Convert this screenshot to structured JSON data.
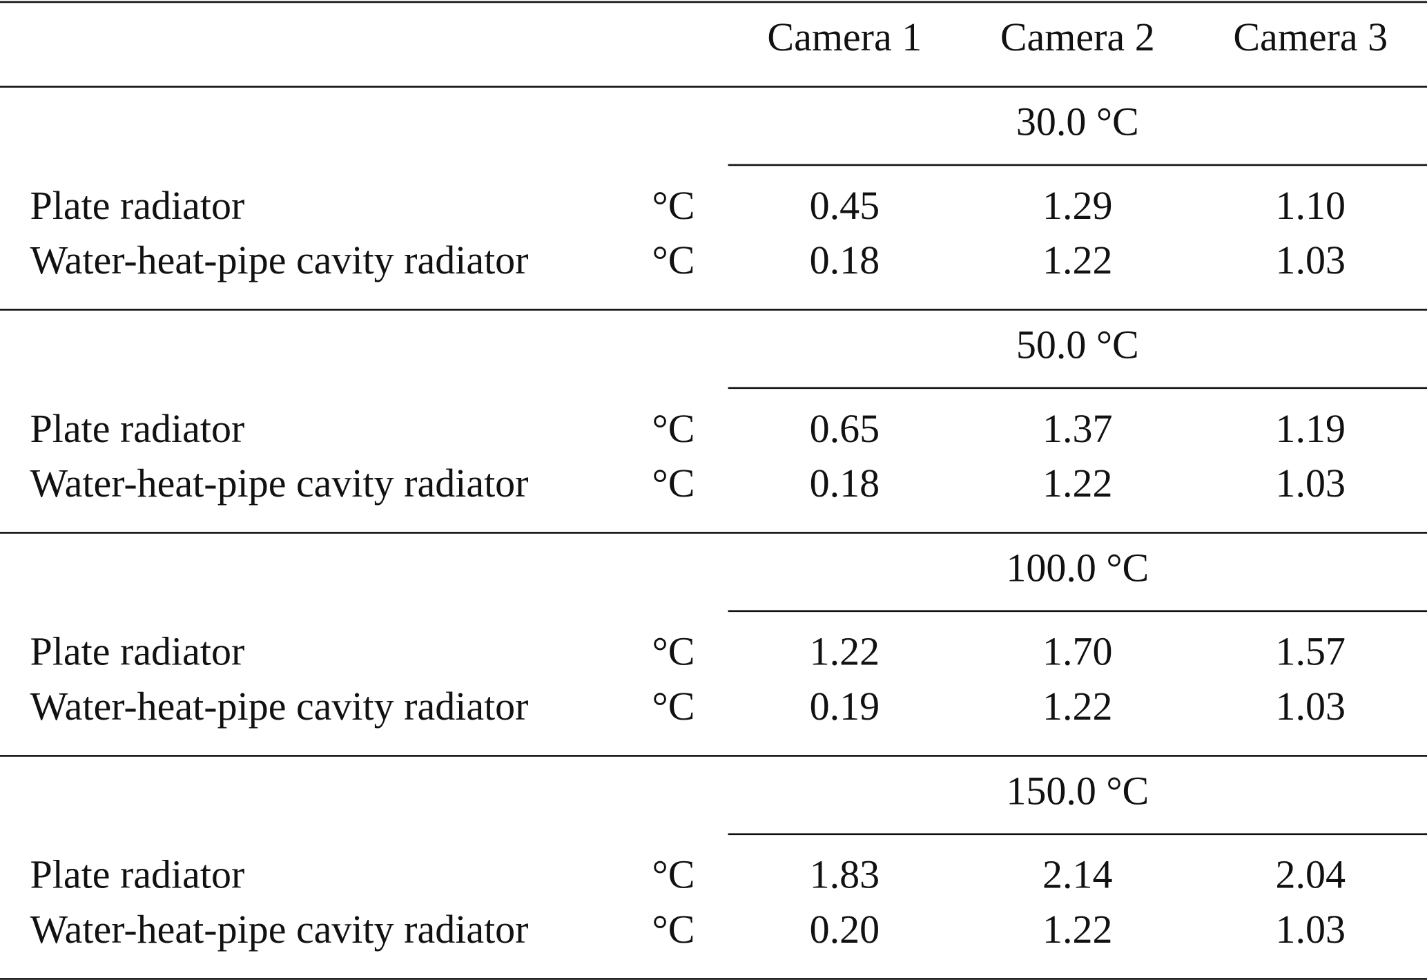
{
  "table": {
    "header": [
      "Camera 1",
      "Camera 2",
      "Camera 3"
    ],
    "groups": [
      {
        "title": "30.0 °C",
        "rows": [
          {
            "label": "Plate radiator",
            "unit": "°C",
            "values": [
              "0.45",
              "1.29",
              "1.10"
            ]
          },
          {
            "label": "Water-heat-pipe cavity radiator",
            "unit": "°C",
            "values": [
              "0.18",
              "1.22",
              "1.03"
            ]
          }
        ]
      },
      {
        "title": "50.0 °C",
        "rows": [
          {
            "label": "Plate radiator",
            "unit": "°C",
            "values": [
              "0.65",
              "1.37",
              "1.19"
            ]
          },
          {
            "label": "Water-heat-pipe cavity radiator",
            "unit": "°C",
            "values": [
              "0.18",
              "1.22",
              "1.03"
            ]
          }
        ]
      },
      {
        "title": "100.0 °C",
        "rows": [
          {
            "label": "Plate radiator",
            "unit": "°C",
            "values": [
              "1.22",
              "1.70",
              "1.57"
            ]
          },
          {
            "label": "Water-heat-pipe cavity radiator",
            "unit": "°C",
            "values": [
              "0.19",
              "1.22",
              "1.03"
            ]
          }
        ]
      },
      {
        "title": "150.0 °C",
        "rows": [
          {
            "label": "Plate radiator",
            "unit": "°C",
            "values": [
              "1.83",
              "2.14",
              "2.04"
            ]
          },
          {
            "label": "Water-heat-pipe cavity radiator",
            "unit": "°C",
            "values": [
              "0.20",
              "1.22",
              "1.03"
            ]
          }
        ]
      }
    ]
  }
}
